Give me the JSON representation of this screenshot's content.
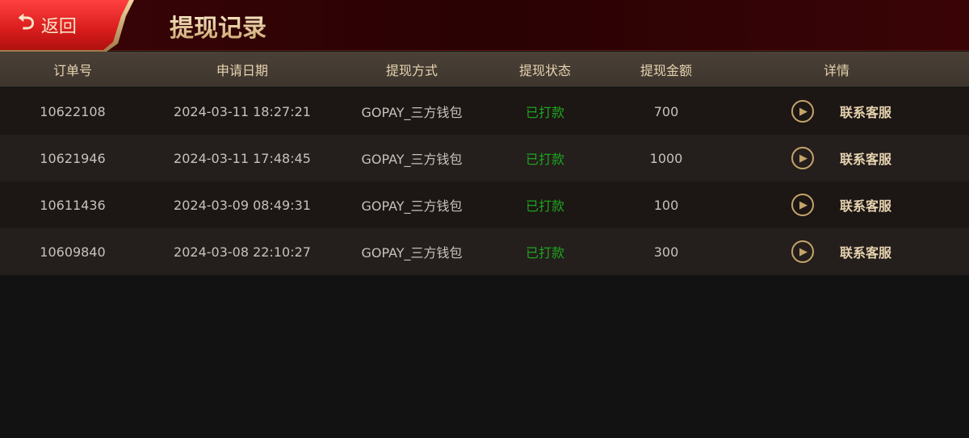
{
  "header": {
    "back_label": "返回",
    "title": "提现记录"
  },
  "columns": [
    "订单号",
    "申请日期",
    "提现方式",
    "提现状态",
    "提现金额",
    "详情"
  ],
  "rows": [
    {
      "order": "10622108",
      "date": "2024-03-11 18:27:21",
      "method": "GOPAY_三方钱包",
      "status": "已打款",
      "amount": "700",
      "detail": "联系客服"
    },
    {
      "order": "10621946",
      "date": "2024-03-11 17:48:45",
      "method": "GOPAY_三方钱包",
      "status": "已打款",
      "amount": "1000",
      "detail": "联系客服"
    },
    {
      "order": "10611436",
      "date": "2024-03-09 08:49:31",
      "method": "GOPAY_三方钱包",
      "status": "已打款",
      "amount": "100",
      "detail": "联系客服"
    },
    {
      "order": "10609840",
      "date": "2024-03-08 22:10:27",
      "method": "GOPAY_三方钱包",
      "status": "已打款",
      "amount": "300",
      "detail": "联系客服"
    }
  ],
  "colors": {
    "status_paid": "#1fa41f",
    "accent_gold": "#e6d3b0",
    "back_red": "#d81c1c"
  }
}
